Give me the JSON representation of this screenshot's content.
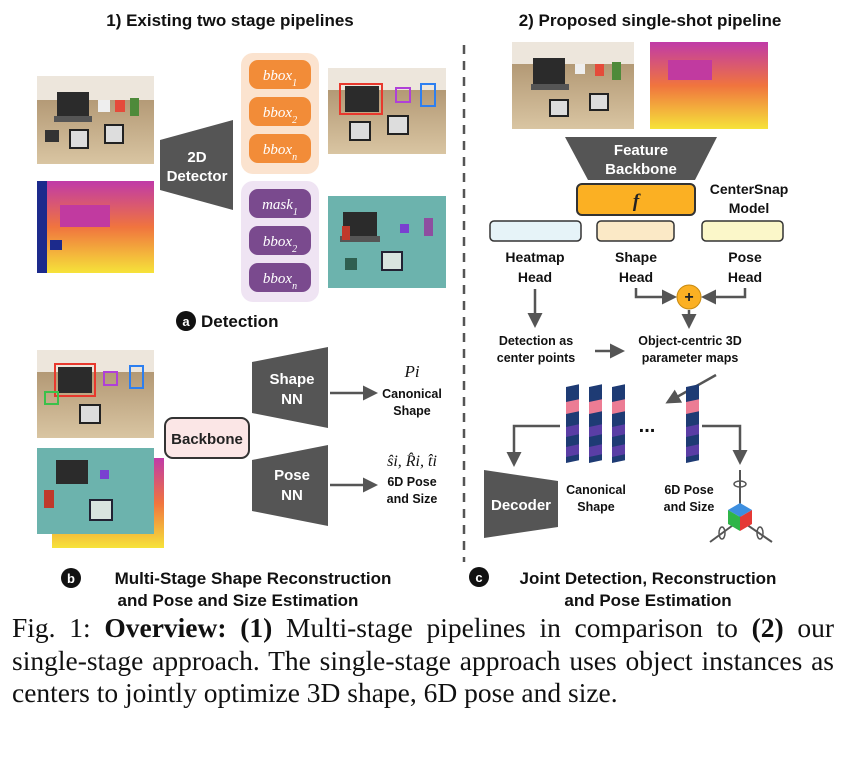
{
  "section1": {
    "title": "1) Existing two stage pipelines"
  },
  "section2": {
    "title": "2) Proposed single-shot pipeline"
  },
  "detector": {
    "line1": "2D",
    "line2": "Detector"
  },
  "det_boxes": {
    "bbox1": "bbox",
    "bbox1_sub": "1",
    "bbox2": "bbox",
    "bbox2_sub": "2",
    "bboxn": "bbox",
    "bboxn_sub": "n"
  },
  "seg_boxes": {
    "mask1": "mask",
    "mask1_sub": "1",
    "bbox2": "bbox",
    "bbox2_sub": "2",
    "bboxn": "bbox",
    "bboxn_sub": "n"
  },
  "panel_a": {
    "badge": "a",
    "label": "Detection"
  },
  "panel_b": {
    "badge": "b",
    "line1": "Multi-Stage Shape Reconstruction",
    "line2": "and Pose and Size Estimation"
  },
  "panel_c": {
    "badge": "c",
    "line1": "Joint Detection, Reconstruction",
    "line2": "and Pose Estimation"
  },
  "backbone": {
    "label": "Backbone"
  },
  "shape_nn": {
    "line1": "Shape",
    "line2": "NN",
    "math": "Pi",
    "out1": "Canonical",
    "out2": "Shape"
  },
  "pose_nn": {
    "line1": "Pose",
    "line2": "NN",
    "math": "ŝi, R̂i, t̂i",
    "out1": "6D Pose",
    "out2": "and Size"
  },
  "feature_backbone": {
    "line1": "Feature",
    "line2": "Backbone"
  },
  "f_box": {
    "label": "f"
  },
  "model": {
    "line1": "CenterSnap",
    "line2": "Model"
  },
  "heads": {
    "heatmap": {
      "line1": "Heatmap",
      "line2": "Head",
      "color": "#e6f3f8"
    },
    "shape": {
      "line1": "Shape",
      "line2": "Head",
      "color": "#fbe9c6"
    },
    "pose": {
      "line1": "Pose",
      "line2": "Head",
      "color": "#fbf7c9"
    }
  },
  "plus": {
    "label": "+"
  },
  "detection_centers": {
    "line1": "Detection as",
    "line2": "center points"
  },
  "param_maps": {
    "line1": "Object-centric 3D",
    "line2": "parameter maps"
  },
  "ellipsis": {
    "label": "..."
  },
  "decoder": {
    "label": "Decoder"
  },
  "canonical_shape": {
    "line1": "Canonical",
    "line2": "Shape"
  },
  "pose_size": {
    "line1": "6D Pose",
    "line2": "and Size"
  },
  "caption": {
    "fig": "Fig. 1:",
    "overview": "Overview:",
    "n1": "(1)",
    "t1": "Multi-stage pipelines in comparison to",
    "n2": "(2)",
    "t2": "our single-stage approach. The single-stage approach uses object instances as centers to jointly optimize 3D shape, 6D pose and size."
  },
  "colors": {
    "orange": "#f28c38",
    "orange_panel": "#fbe3cf",
    "purple": "#7a4a8e",
    "purple_panel": "#efe4f3",
    "dark_block": "#555555",
    "feature_f": "#fbb023",
    "plus_circle": "#fbb023",
    "backbone_fill": "#fbe6e6"
  }
}
